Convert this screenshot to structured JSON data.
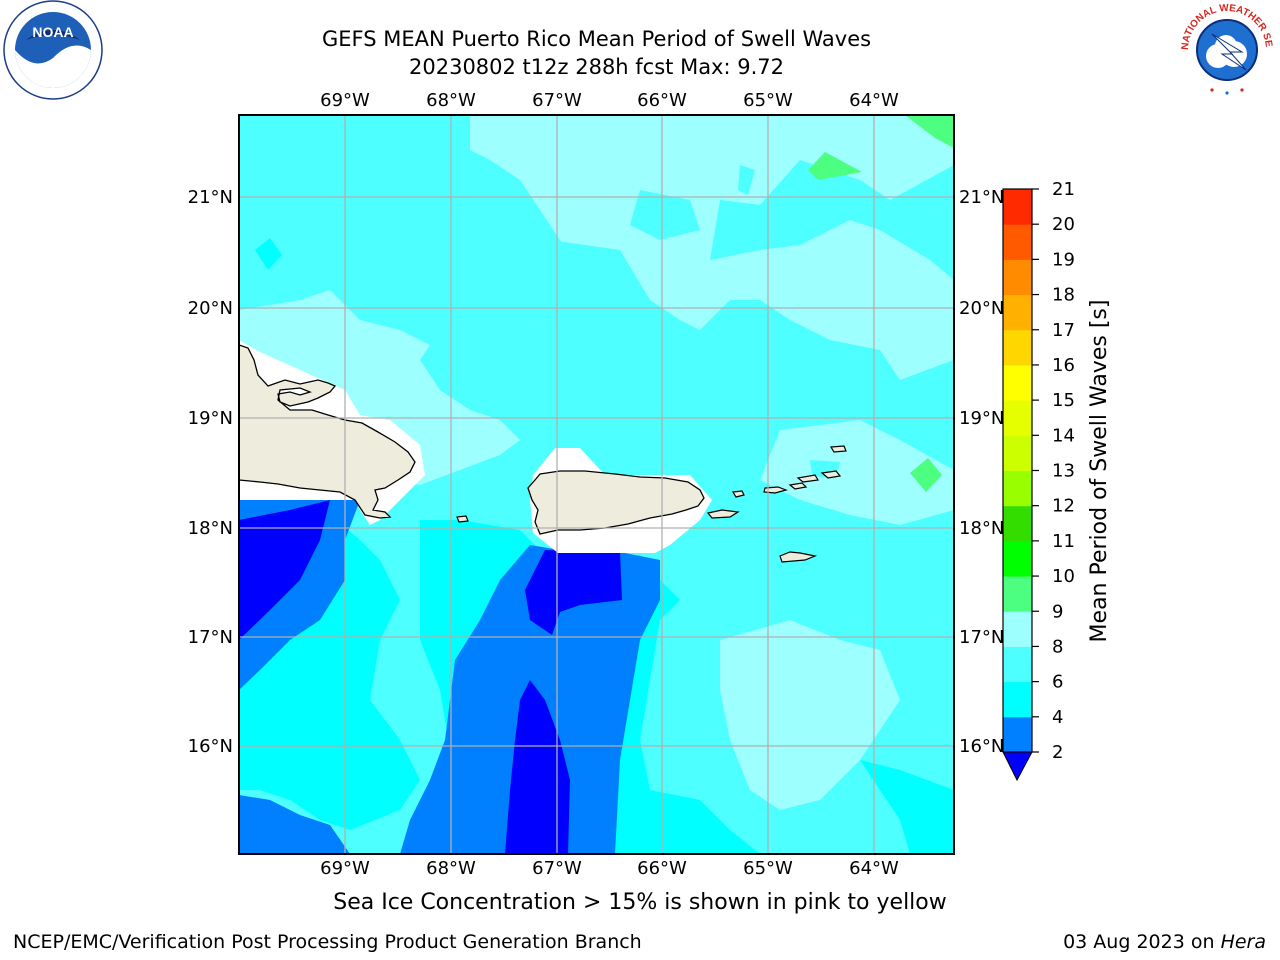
{
  "title": {
    "line1": "GEFS MEAN Puerto Rico Mean Period of Swell Waves",
    "line2": "20230802 t12z 288h fcst   Max: 9.72"
  },
  "map": {
    "lon_labels": [
      "69°W",
      "68°W",
      "67°W",
      "66°W",
      "65°W",
      "64°W"
    ],
    "lat_labels": [
      "21°N",
      "20°N",
      "19°N",
      "18°N",
      "17°N",
      "16°N"
    ],
    "lon_range": [
      "69.99°W",
      "63.26°W"
    ],
    "lat_range": [
      "15.02°N",
      "21.75°N"
    ],
    "colors": {
      "ocean_4_6": "#00ffff",
      "ocean_6_8": "#4dffff",
      "ocean_8_9": "#9effff",
      "ocean_2_4": "#0080ff",
      "ocean_lt2": "#0000ff",
      "ocean_9_10": "#4dff80",
      "land": "#eeecdc",
      "grid": "#b0b0b0"
    }
  },
  "colorbar": {
    "label": "Mean Period of Swell Waves [s]",
    "ticks": [
      "2",
      "4",
      "6",
      "8",
      "9",
      "10",
      "11",
      "12",
      "13",
      "14",
      "15",
      "16",
      "17",
      "18",
      "19",
      "20",
      "21"
    ],
    "colors": [
      "#0080ff",
      "#00ffff",
      "#4dffff",
      "#9effff",
      "#4dff80",
      "#00ff00",
      "#33dd00",
      "#99ff00",
      "#ccff00",
      "#e6ff00",
      "#ffff00",
      "#ffd700",
      "#ffb000",
      "#ff8c00",
      "#ff5a00",
      "#ff2a00"
    ],
    "extend_color": "#0000ff"
  },
  "note": "Sea Ice Concentration > 15% is shown in pink to yellow",
  "footer": {
    "left": "NCEP/EMC/Verification Post Processing Product Generation Branch",
    "date": "03 Aug 2023 on ",
    "machine": "Hera"
  },
  "logos": {
    "noaa": {
      "text": "NOAA",
      "icon": "noaa-logo"
    },
    "nws": {
      "text": "NATIONAL WEATHER SERVICE",
      "icon": "nws-logo"
    }
  }
}
